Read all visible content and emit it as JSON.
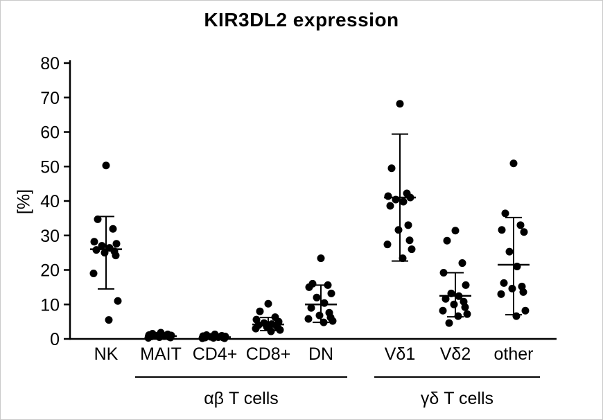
{
  "chart_data": {
    "type": "scatter",
    "title": "KIR3DL2 expression",
    "ylabel": "[%]",
    "ylim": [
      0,
      80
    ],
    "yticks": [
      0,
      10,
      20,
      30,
      40,
      50,
      60,
      70,
      80
    ],
    "grid": false,
    "categories": [
      "NK",
      "MAIT",
      "CD4+",
      "CD8+",
      "DN",
      "Vδ1",
      "Vδ2",
      "other"
    ],
    "group_labels": [
      {
        "label": "αβ T cells",
        "start_category": "MAIT",
        "end_category": "DN"
      },
      {
        "label": "γδ T cells",
        "start_category": "Vδ1",
        "end_category": "other"
      }
    ],
    "marker_color": "#000000",
    "series": [
      {
        "category": "NK",
        "median": 26.0,
        "err_low": 14.5,
        "err_high": 35.5,
        "points": [
          50.3,
          34.7,
          31.9,
          28.2,
          27.6,
          27.0,
          26.4,
          25.8,
          25.4,
          25.0,
          24.2,
          19.0,
          11.0,
          5.5
        ]
      },
      {
        "category": "MAIT",
        "median": 0.8,
        "err_low": 0.3,
        "err_high": 1.4,
        "points": [
          1.8,
          1.5,
          1.3,
          1.1,
          1.0,
          0.9,
          0.8,
          0.7,
          0.6,
          0.5,
          0.4,
          0.3
        ]
      },
      {
        "category": "CD4+",
        "median": 0.5,
        "err_low": 0.2,
        "err_high": 0.9,
        "points": [
          1.3,
          1.1,
          0.9,
          0.8,
          0.7,
          0.6,
          0.5,
          0.4,
          0.4,
          0.3,
          0.2,
          0.2
        ]
      },
      {
        "category": "CD8+",
        "median": 4.2,
        "err_low": 2.4,
        "err_high": 6.2,
        "points": [
          10.2,
          8.0,
          6.3,
          5.6,
          5.0,
          4.6,
          4.3,
          4.0,
          3.8,
          3.5,
          3.2,
          3.0,
          2.6,
          2.2
        ]
      },
      {
        "category": "DN",
        "median": 10.0,
        "err_low": 4.8,
        "err_high": 15.6,
        "points": [
          23.4,
          16.0,
          15.6,
          15.0,
          13.2,
          12.0,
          10.4,
          9.0,
          7.6,
          6.8,
          6.2,
          5.8,
          5.2,
          4.8
        ]
      },
      {
        "category": "Vδ1",
        "median": 41.0,
        "err_low": 22.6,
        "err_high": 59.4,
        "points": [
          68.2,
          49.5,
          42.2,
          41.4,
          41.0,
          40.4,
          39.8,
          38.6,
          33.0,
          31.6,
          28.6,
          27.4,
          26.0,
          23.4
        ]
      },
      {
        "category": "Vδ2",
        "median": 12.5,
        "err_low": 6.4,
        "err_high": 19.2,
        "points": [
          31.4,
          28.5,
          22.0,
          19.2,
          15.6,
          13.2,
          12.4,
          11.6,
          10.8,
          10.0,
          9.2,
          8.2,
          7.2,
          6.6,
          4.6
        ]
      },
      {
        "category": "other",
        "median": 21.5,
        "err_low": 7.0,
        "err_high": 35.2,
        "points": [
          50.9,
          36.4,
          33.0,
          31.6,
          31.0,
          25.3,
          21.0,
          16.2,
          15.2,
          14.6,
          13.6,
          13.0,
          8.2,
          6.6
        ]
      }
    ]
  }
}
